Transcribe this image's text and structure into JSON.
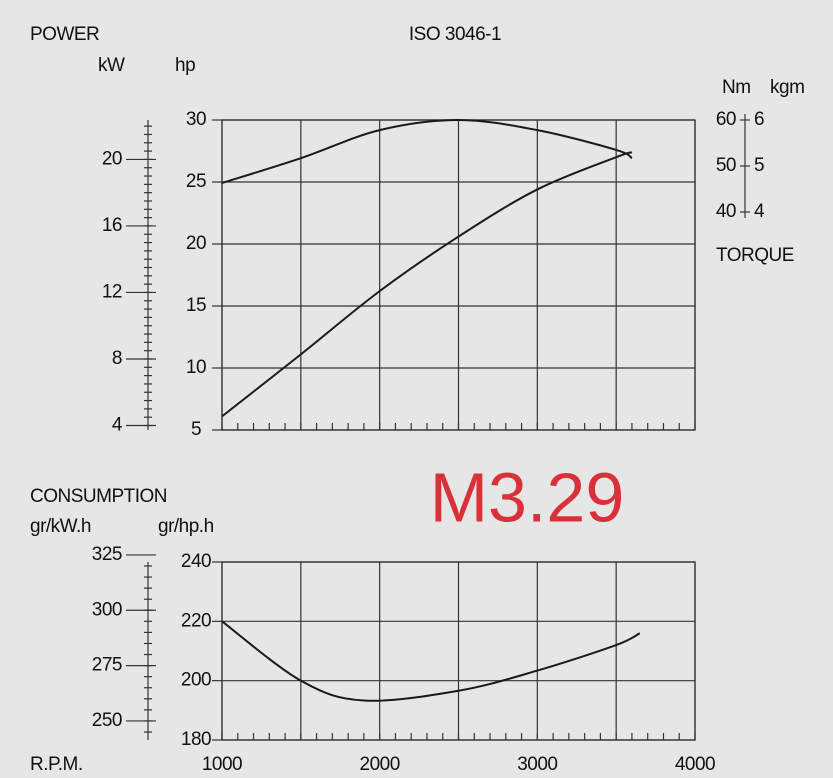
{
  "chart_data": {
    "type": "line",
    "xlabel": "R.P.M.",
    "xlim": [
      1000,
      4000
    ],
    "xticks": [
      1000,
      2000,
      3000,
      4000
    ],
    "xgrid": [
      1500,
      2500,
      3500
    ],
    "xminor_step": 100,
    "annotation": "M3.29",
    "annotation_color": "#d9303a",
    "panels": [
      {
        "title": "ISO 3046-1",
        "ylabel": "POWER",
        "y2label": "TORQUE",
        "axes": {
          "hp": {
            "label": "hp",
            "lim": [
              5,
              30
            ],
            "ticks": [
              5,
              10,
              15,
              20,
              25,
              30
            ],
            "grid": true
          },
          "kW": {
            "label": "kW",
            "lim": [
              3.73,
              22.37
            ],
            "ticks": [
              4,
              8,
              12,
              16,
              20
            ],
            "minor_step": 0.5
          },
          "Nm": {
            "label": "Nm",
            "lim": [
              40,
              60
            ],
            "ticks": [
              40,
              50,
              60
            ]
          },
          "kgm": {
            "label": "kgm",
            "lim": [
              4,
              6
            ],
            "ticks": [
              4,
              5,
              6
            ]
          }
        },
        "x": [
          1000,
          1500,
          2000,
          2500,
          3000,
          3500,
          3600
        ],
        "series": [
          {
            "axis": "hp",
            "color": "#1a1a1a",
            "values": [
              6.1,
              11.1,
              16.2,
              20.6,
              24.4,
              27,
              27.4
            ]
          },
          {
            "axis": "Nm",
            "color": "#1a1a1a",
            "values": [
              46.3,
              51.7,
              57.8,
              60,
              57.8,
              53.5,
              51.7
            ]
          }
        ]
      },
      {
        "ylabel": "CONSUMPTION",
        "axes": {
          "gkwh": {
            "label": "gr/kW.h",
            "lim": [
              241.4,
              321.8
            ],
            "ticks": [
              250,
              275,
              300,
              325
            ],
            "minor_step": 5
          },
          "ghph": {
            "label": "gr/hp.h",
            "lim": [
              180,
              240
            ],
            "ticks": [
              180,
              200,
              220,
              240
            ],
            "grid": true
          }
        },
        "x": [
          1000,
          1500,
          1900,
          2500,
          3000,
          3500,
          3650
        ],
        "series": [
          {
            "axis": "ghph",
            "color": "#1a1a1a",
            "values": [
              220,
              200,
              193.3,
              196.6,
              203.4,
              212,
              216
            ]
          }
        ]
      }
    ]
  }
}
